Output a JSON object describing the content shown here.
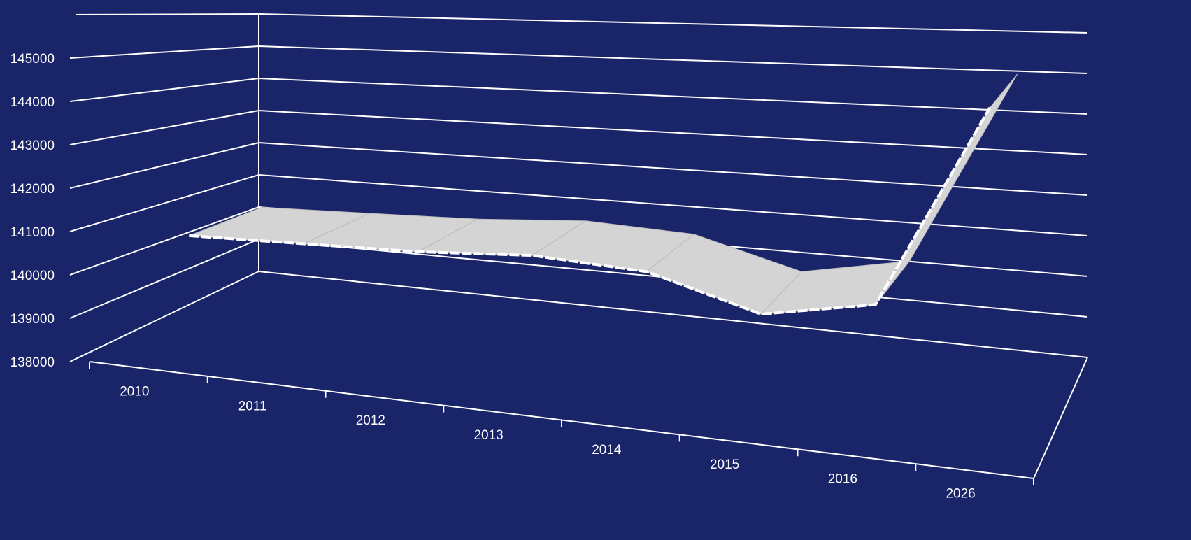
{
  "chart_data": {
    "type": "line3d",
    "categories": [
      "2010",
      "2011",
      "2012",
      "2013",
      "2014",
      "2015",
      "2016",
      "2026"
    ],
    "values": [
      140700,
      140800,
      140900,
      141100,
      141000,
      140300,
      140800,
      145500
    ],
    "color": "#d4d4d4",
    "ylim": [
      138000,
      146000
    ],
    "yticks": [
      138000,
      139000,
      140000,
      141000,
      142000,
      143000,
      144000,
      145000
    ],
    "grid": true
  }
}
